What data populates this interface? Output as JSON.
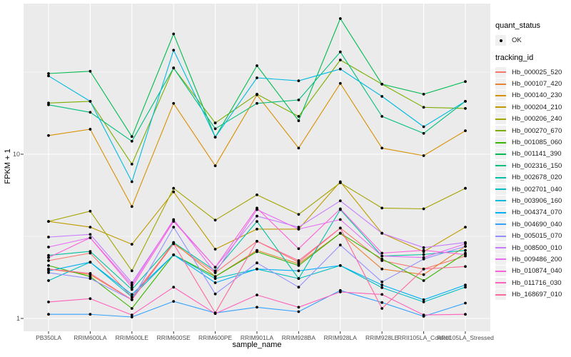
{
  "figure": {
    "ylabel": "FPKM + 1",
    "xlabel": "sample_name",
    "y_ticks": [
      {
        "label": "10",
        "value": 10
      },
      {
        "label": "1",
        "value": 1
      }
    ]
  },
  "legend": {
    "quant_title": "quant_status",
    "quant_items": [
      {
        "label": "OK",
        "marker": "point"
      }
    ],
    "tracking_title": "tracking_id"
  },
  "chart_data": {
    "type": "line",
    "title": "",
    "xlabel": "sample_name",
    "ylabel": "FPKM + 1",
    "y_scale": "log10",
    "ylim": [
      0.87,
      82
    ],
    "y_major_gridlines": [
      1,
      10
    ],
    "y_minor_gridlines": [
      3.162,
      31.623
    ],
    "legend_position": "right",
    "panel_background": "#EBEBEB",
    "gridline_color": "#FFFFFF",
    "point_color": "#000000",
    "categories": [
      "PB350LA",
      "RRIM600LA",
      "RRIM600LE",
      "RRIM600SE",
      "RRIM600PE",
      "RRIM901LA",
      "RRIM928BA",
      "RRIM928LA",
      "RRIM928LE",
      "RRII105LA_Control",
      "RRII105LA_Stressed"
    ],
    "series": [
      {
        "name": "Hb_000025_520",
        "color": "#F8766D",
        "values": [
          2.25,
          2.5,
          1.35,
          2.85,
          1.9,
          2.95,
          2.2,
          3.55,
          2.25,
          2.0,
          2.4
        ]
      },
      {
        "name": "Hb_000107_420",
        "color": "#EA8331",
        "values": [
          2.0,
          1.85,
          1.3,
          2.9,
          1.8,
          2.6,
          2.15,
          3.3,
          2.0,
          1.85,
          2.75
        ]
      },
      {
        "name": "Hb_000140_230",
        "color": "#D89000",
        "values": [
          13,
          14.2,
          4.8,
          20.4,
          8.5,
          23,
          10.9,
          27,
          10.9,
          9.8,
          13.9
        ]
      },
      {
        "name": "Hb_000204_210",
        "color": "#C09B00",
        "values": [
          3.9,
          3.6,
          2.83,
          5.9,
          2.64,
          3.5,
          3.5,
          6.8,
          3.3,
          2.55,
          3.6
        ]
      },
      {
        "name": "Hb_000206_240",
        "color": "#A3A500",
        "values": [
          3.9,
          4.5,
          1.95,
          6.2,
          3.97,
          5.66,
          4.3,
          6.7,
          4.7,
          4.65,
          6.2
        ]
      },
      {
        "name": "Hb_000270_670",
        "color": "#7CAE00",
        "values": [
          20.5,
          21,
          8.7,
          33.5,
          15.5,
          23.2,
          17,
          37.5,
          26.7,
          19.3,
          19
        ]
      },
      {
        "name": "Hb_001085_060",
        "color": "#39B600",
        "values": [
          2.1,
          1.8,
          1.15,
          2.44,
          1.8,
          2.55,
          2.1,
          3.3,
          2.3,
          1.7,
          2.5
        ]
      },
      {
        "name": "Hb_001141_390",
        "color": "#00BB4E",
        "values": [
          31,
          32,
          12.8,
          54,
          12.7,
          34.6,
          16,
          67,
          26.7,
          23.2,
          27.7
        ]
      },
      {
        "name": "Hb_002316_150",
        "color": "#00BF7D",
        "values": [
          20,
          18,
          12,
          33.5,
          14.3,
          20.4,
          21.4,
          42,
          17,
          13.4,
          21
        ]
      },
      {
        "name": "Hb_002678_020",
        "color": "#00C1A3",
        "values": [
          2.42,
          2.56,
          1.5,
          2.9,
          1.95,
          3.9,
          1.75,
          4.6,
          2.4,
          2.45,
          2.6
        ]
      },
      {
        "name": "Hb_002701_040",
        "color": "#00BFC4",
        "values": [
          1.7,
          2.2,
          1.35,
          2.44,
          1.75,
          2.0,
          1.75,
          2.1,
          1.54,
          1.26,
          1.55
        ]
      },
      {
        "name": "Hb_003906_160",
        "color": "#00BAE0",
        "values": [
          30,
          21,
          6.8,
          43,
          12.7,
          29.2,
          28,
          33,
          22.5,
          14.7,
          21
        ]
      },
      {
        "name": "Hb_004374_070",
        "color": "#00B0F6",
        "values": [
          1.95,
          2.2,
          1.4,
          2.44,
          1.65,
          2.0,
          1.95,
          2.1,
          1.6,
          1.3,
          1.6
        ]
      },
      {
        "name": "Hb_004690_040",
        "color": "#35A2FF",
        "values": [
          1.06,
          1.06,
          1.02,
          1.27,
          1.08,
          1.17,
          1.1,
          1.48,
          1.25,
          1.03,
          1.24
        ]
      },
      {
        "name": "Hb_005015_070",
        "color": "#9590FF",
        "values": [
          1.9,
          1.75,
          1.3,
          3.6,
          1.41,
          2.18,
          1.55,
          2.8,
          1.67,
          2.3,
          2.75
        ]
      },
      {
        "name": "Hb_008500_010",
        "color": "#C77CFF",
        "values": [
          3.13,
          3.25,
          1.65,
          3.95,
          2.05,
          4.2,
          3.6,
          5.2,
          3.3,
          2.7,
          2.9
        ]
      },
      {
        "name": "Hb_009486_200",
        "color": "#E76BF3",
        "values": [
          2.72,
          3.1,
          1.6,
          4.0,
          1.9,
          4.6,
          3.5,
          4.0,
          2.4,
          2.35,
          2.85
        ]
      },
      {
        "name": "Hb_010874_040",
        "color": "#FA62DB",
        "values": [
          2.35,
          3.1,
          1.55,
          3.9,
          2.05,
          4.7,
          2.66,
          4.65,
          2.5,
          2.6,
          2.45
        ]
      },
      {
        "name": "Hb_011716_030",
        "color": "#FF62BC",
        "values": [
          1.26,
          1.32,
          1.05,
          1.55,
          1.07,
          1.39,
          1.17,
          1.45,
          1.4,
          1.05,
          1.06
        ]
      },
      {
        "name": "Hb_168697_010",
        "color": "#FF6A98",
        "values": [
          2.0,
          1.88,
          1.3,
          2.85,
          1.08,
          2.95,
          2.25,
          3.55,
          1.15,
          2.0,
          2.07
        ]
      }
    ]
  }
}
